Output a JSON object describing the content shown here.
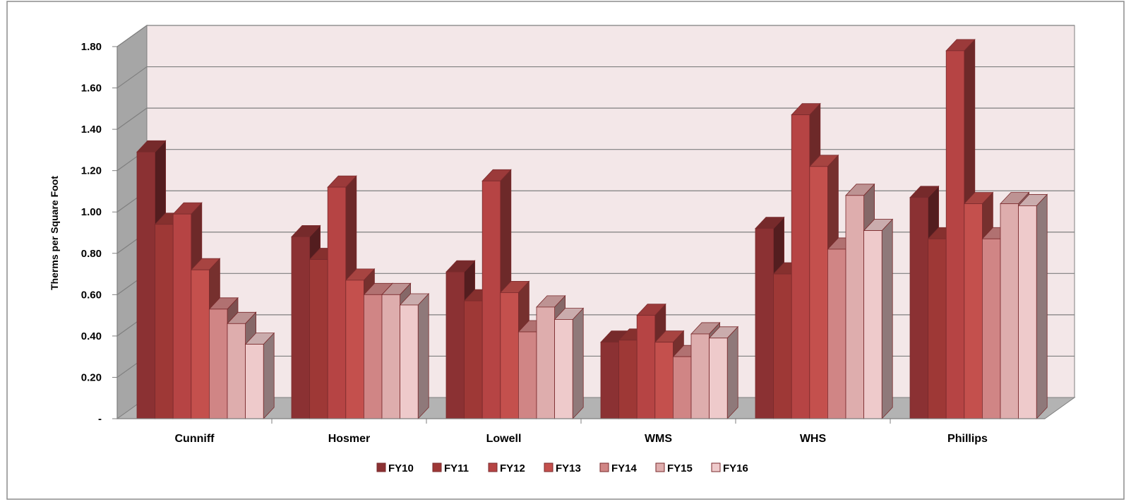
{
  "chart_data": {
    "type": "bar",
    "ylabel": "Therms per Square Foot",
    "ylim": [
      0,
      1.8
    ],
    "ystep": 0.2,
    "ytick_labels": [
      "-",
      "0.20",
      "0.40",
      "0.60",
      "0.80",
      "1.00",
      "1.20",
      "1.40",
      "1.60",
      "1.80"
    ],
    "categories": [
      "Cunniff",
      "Hosmer",
      "Lowell",
      "WMS",
      "WHS",
      "Phillips"
    ],
    "series": [
      {
        "name": "FY10",
        "values": [
          1.29,
          0.88,
          0.71,
          0.37,
          0.92,
          1.07
        ]
      },
      {
        "name": "FY11",
        "values": [
          0.94,
          0.77,
          0.57,
          0.38,
          0.7,
          0.87
        ]
      },
      {
        "name": "FY12",
        "values": [
          0.99,
          1.12,
          1.15,
          0.5,
          1.47,
          1.78
        ]
      },
      {
        "name": "FY13",
        "values": [
          0.72,
          0.67,
          0.61,
          0.37,
          1.22,
          1.04
        ]
      },
      {
        "name": "FY14",
        "values": [
          0.53,
          0.6,
          0.42,
          0.3,
          0.82,
          0.87
        ]
      },
      {
        "name": "FY15",
        "values": [
          0.46,
          0.6,
          0.54,
          0.41,
          1.08,
          1.04
        ]
      },
      {
        "name": "FY16",
        "values": [
          0.36,
          0.55,
          0.48,
          0.39,
          0.91,
          1.03
        ]
      }
    ],
    "grid": true,
    "legend": "bottom",
    "colors": {
      "FY10": "#8B3133",
      "FY11": "#9E3836",
      "FY12": "#B64444",
      "FY13": "#C4504D",
      "FY14": "#D08585",
      "FY15": "#DEADAD",
      "FY16": "#EECACB"
    },
    "wall_color": "#F3E7E8",
    "floor_color": "#B3B3B3",
    "side_wall_color": "#A6A6A6"
  }
}
